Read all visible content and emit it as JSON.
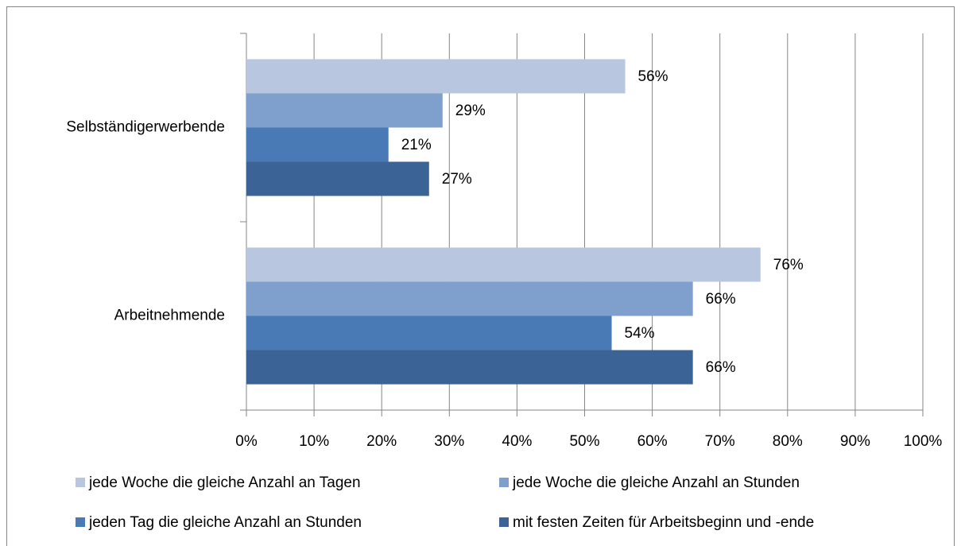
{
  "chart_data": {
    "type": "hbar",
    "categories": [
      "Selbständigerwerbende",
      "Arbeitnehmende"
    ],
    "series": [
      {
        "name": "jede Woche die gleiche Anzahl an Tagen",
        "color": "#b9c6e0",
        "values": [
          56,
          76
        ],
        "value_labels": [
          "56%",
          "76%"
        ]
      },
      {
        "name": "jede Woche die gleiche Anzahl an Stunden",
        "color": "#7f9fcc",
        "values": [
          29,
          66
        ],
        "value_labels": [
          "29%",
          "66%"
        ]
      },
      {
        "name": "jeden Tag die gleiche Anzahl an Stunden",
        "color": "#4a7ab5",
        "values": [
          21,
          54
        ],
        "value_labels": [
          "21%",
          "54%"
        ]
      },
      {
        "name": "mit festen Zeiten für Arbeitsbeginn und -ende",
        "color": "#3b6395",
        "values": [
          27,
          66
        ],
        "value_labels": [
          "27%",
          "66%"
        ]
      }
    ],
    "xlim": [
      0,
      100
    ],
    "xticks": [
      {
        "value": 0,
        "label": "0%"
      },
      {
        "value": 10,
        "label": "10%"
      },
      {
        "value": 20,
        "label": "20%"
      },
      {
        "value": 30,
        "label": "30%"
      },
      {
        "value": 40,
        "label": "40%"
      },
      {
        "value": 50,
        "label": "50%"
      },
      {
        "value": 60,
        "label": "60%"
      },
      {
        "value": 70,
        "label": "70%"
      },
      {
        "value": 80,
        "label": "80%"
      },
      {
        "value": 90,
        "label": "90%"
      },
      {
        "value": 100,
        "label": "100%"
      }
    ],
    "grid": true,
    "legend": "bottom"
  }
}
